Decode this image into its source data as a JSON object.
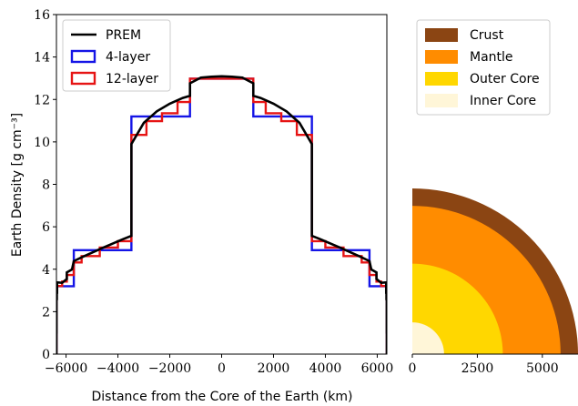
{
  "chart_data": [
    {
      "type": "line",
      "xlabel": "Distance from the Core of the Earth (km)",
      "ylabel": "Earth Density [g cm⁻³]",
      "xlim": [
        -6371,
        6371
      ],
      "ylim": [
        0,
        16
      ],
      "xticks": [
        -6000,
        -4000,
        -2000,
        0,
        2000,
        4000,
        6000
      ],
      "xtick_labels": [
        "−6000",
        "−4000",
        "−2000",
        "0",
        "2000",
        "4000",
        "6000"
      ],
      "yticks": [
        0,
        2,
        4,
        6,
        8,
        10,
        12,
        14,
        16
      ],
      "ytick_labels": [
        "0",
        "2",
        "4",
        "6",
        "8",
        "10",
        "12",
        "14",
        "16"
      ],
      "grid": false,
      "legend_position": "top-left",
      "series": [
        {
          "name": "PREM",
          "color": "#000000",
          "style": "smooth",
          "points": [
            [
              0,
              13.09
            ],
            [
              400,
              13.07
            ],
            [
              800,
              13.03
            ],
            [
              1221,
              12.76
            ],
            [
              1221,
              12.17
            ],
            [
              1500,
              12.07
            ],
            [
              2000,
              11.8
            ],
            [
              2500,
              11.44
            ],
            [
              3000,
              10.9
            ],
            [
              3480,
              9.9
            ],
            [
              3480,
              5.57
            ],
            [
              3800,
              5.42
            ],
            [
              4200,
              5.21
            ],
            [
              4600,
              5.0
            ],
            [
              5000,
              4.78
            ],
            [
              5400,
              4.56
            ],
            [
              5701,
              4.38
            ],
            [
              5771,
              3.99
            ],
            [
              5971,
              3.85
            ],
            [
              5971,
              3.54
            ],
            [
              6151,
              3.36
            ],
            [
              6346,
              3.38
            ],
            [
              6346,
              2.9
            ],
            [
              6356,
              2.9
            ],
            [
              6356,
              2.6
            ],
            [
              6368,
              2.6
            ],
            [
              6368,
              1.02
            ],
            [
              6371,
              1.02
            ],
            [
              6371,
              0
            ]
          ]
        },
        {
          "name": "4-layer",
          "color": "#1414e6",
          "style": "steps",
          "edges": [
            1221.5,
            3480,
            5701,
            6371
          ],
          "values": [
            12.98,
            11.2,
            4.9,
            3.2
          ]
        },
        {
          "name": "12-layer",
          "color": "#e61414",
          "style": "steps",
          "edges": [
            1221.5,
            1700,
            2300,
            2900,
            3480,
            4000,
            4700,
            5400,
            5701,
            5971,
            6151,
            6371
          ],
          "values": [
            12.98,
            11.88,
            11.35,
            10.98,
            10.33,
            5.32,
            5.02,
            4.62,
            4.32,
            3.73,
            3.42,
            3.21
          ]
        }
      ]
    },
    {
      "type": "pie",
      "xlim": [
        0,
        6371
      ],
      "ylim": [
        0,
        6371
      ],
      "xticks": [
        0,
        2500,
        5000
      ],
      "xtick_labels": [
        "0",
        "2500",
        "5000"
      ],
      "legend_position": "top",
      "layers": [
        {
          "name": "Crust",
          "outer_radius_km": 6371,
          "color": "#8b4513"
        },
        {
          "name": "Mantle",
          "outer_radius_km": 5701,
          "color": "#ff8c00"
        },
        {
          "name": "Outer Core",
          "outer_radius_km": 3480,
          "color": "#ffd700"
        },
        {
          "name": "Inner Core",
          "outer_radius_km": 1221,
          "color": "#fff6d8"
        }
      ]
    }
  ]
}
